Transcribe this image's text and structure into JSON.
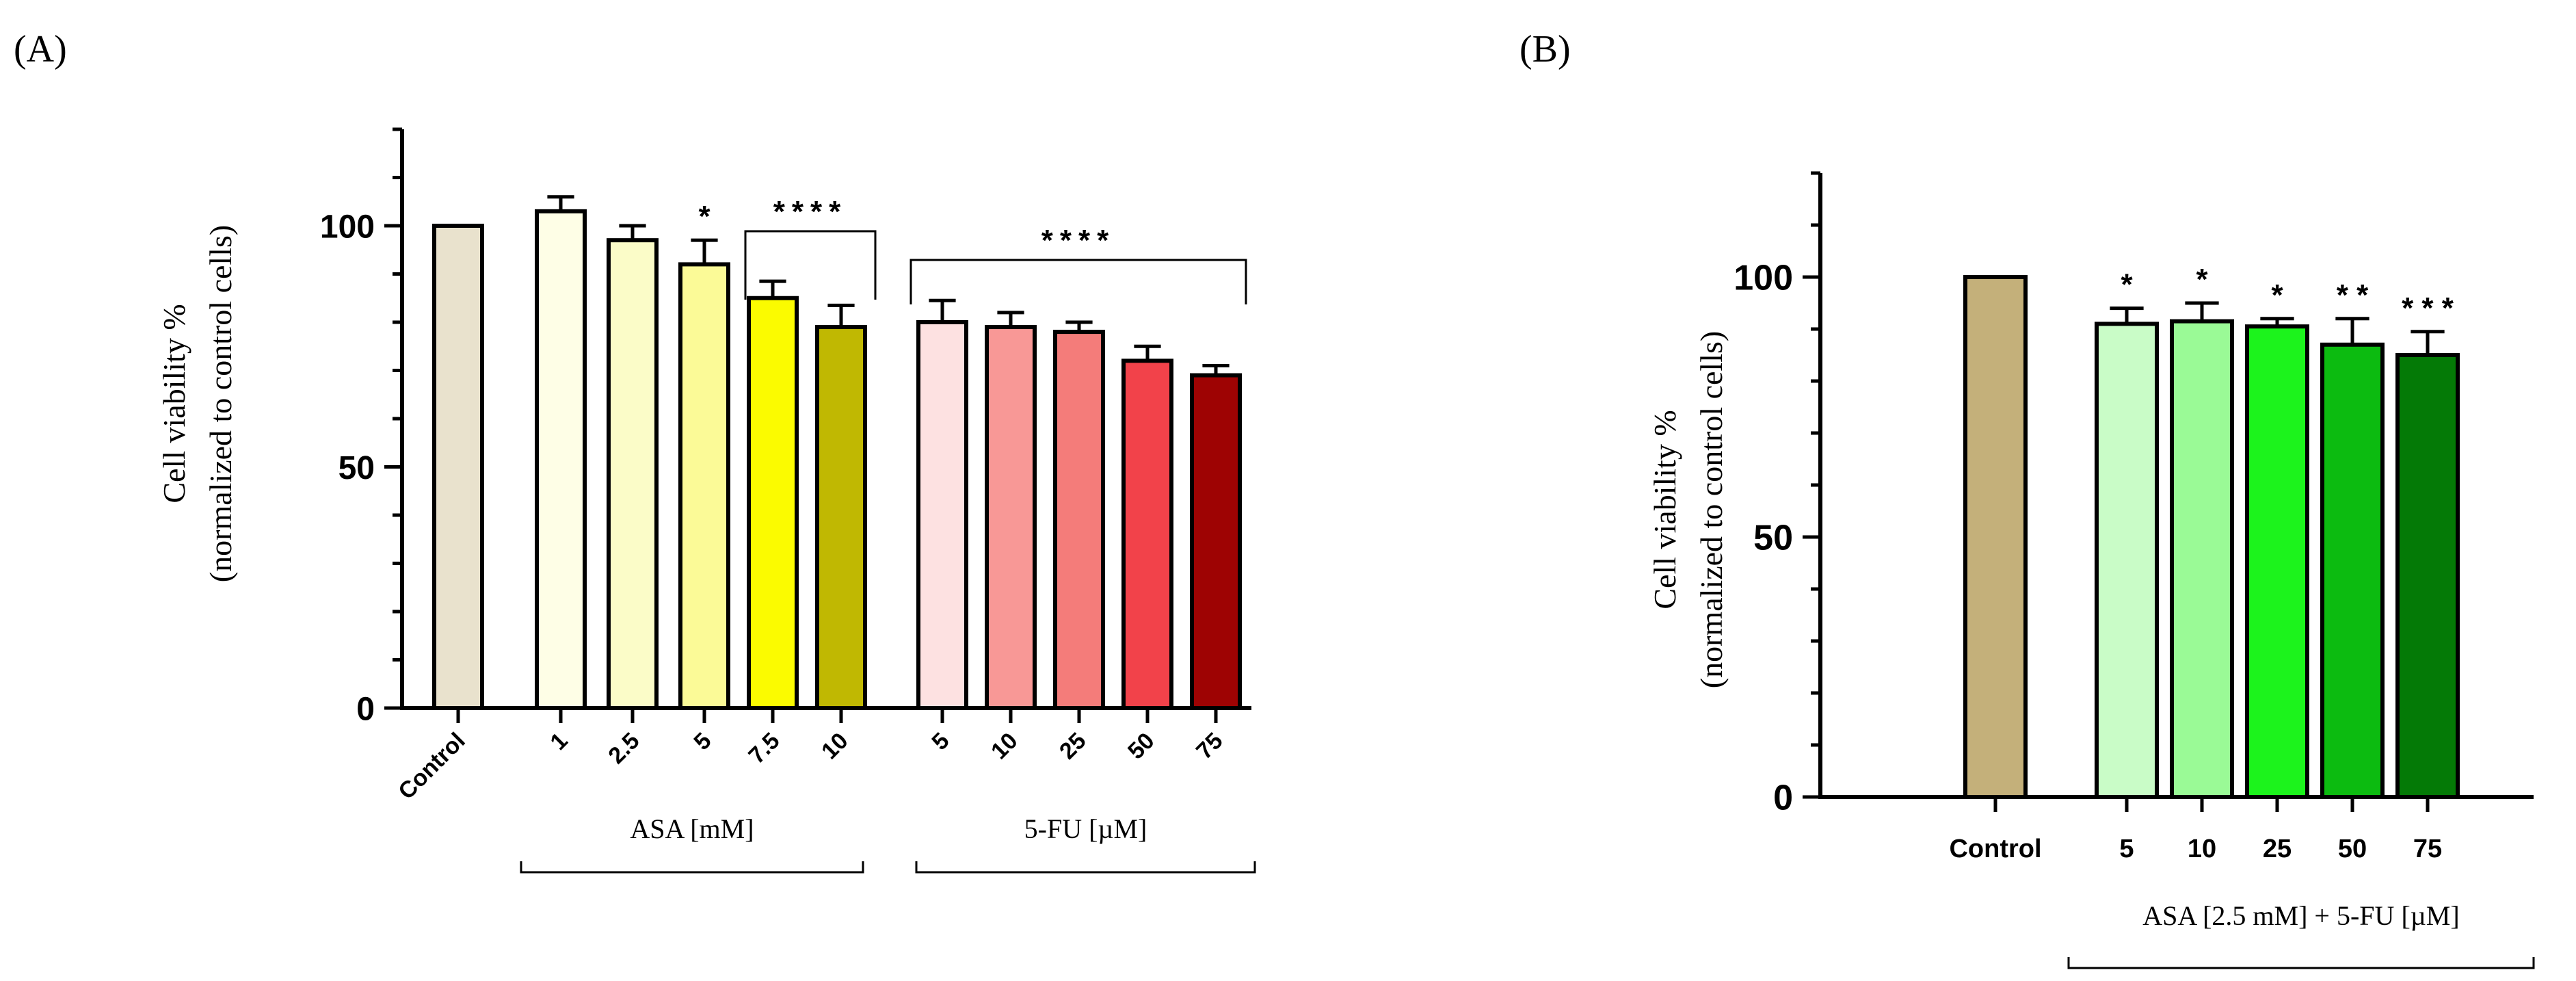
{
  "chart_data": [
    {
      "type": "bar",
      "panel_label": "(A)",
      "ylabel": [
        "Cell viability %",
        "(normalized to control cells)"
      ],
      "ylim": [
        0,
        120
      ],
      "yticks": [
        0,
        50,
        100
      ],
      "bars": [
        {
          "category": "Control",
          "value": 100,
          "error": 0,
          "color": "#e9e2cd"
        },
        {
          "category": "1",
          "value": 103,
          "error": 3,
          "color": "#fefee6"
        },
        {
          "category": "2.5",
          "value": 97,
          "error": 3,
          "color": "#fbfcc8"
        },
        {
          "category": "5",
          "value": 92,
          "error": 5,
          "color": "#fbfa97"
        },
        {
          "category": "7.5",
          "value": 85,
          "error": 3.5,
          "color": "#fbfb00"
        },
        {
          "category": "10",
          "value": 79,
          "error": 4.5,
          "color": "#c0b802"
        },
        {
          "category": "5",
          "value": 80,
          "error": 4.5,
          "color": "#fde1e1"
        },
        {
          "category": "10",
          "value": 79,
          "error": 3,
          "color": "#f89896"
        },
        {
          "category": "25",
          "value": 78,
          "error": 2,
          "color": "#f47c7a"
        },
        {
          "category": "50",
          "value": 72,
          "error": 3,
          "color": "#f2424a"
        },
        {
          "category": "75",
          "value": 69,
          "error": 2,
          "color": "#9e0303"
        }
      ],
      "group_labels": [
        "ASA [mM]",
        "5-FU [µM]"
      ],
      "annotations": [
        {
          "text": "*",
          "bar_index": 3
        },
        {
          "text": "****",
          "bracket": [
            4,
            5
          ]
        },
        {
          "text": "****",
          "bracket": [
            6,
            10
          ]
        }
      ]
    },
    {
      "type": "bar",
      "panel_label": "(B)",
      "ylabel": [
        "Cell viability %",
        "(normalized to control cells)"
      ],
      "ylim": [
        0,
        120
      ],
      "yticks": [
        0,
        50,
        100
      ],
      "bars": [
        {
          "category": "Control",
          "value": 100,
          "error": 0,
          "color": "#c4b07a"
        },
        {
          "category": "5",
          "value": 91,
          "error": 3,
          "color": "#c9fcc7"
        },
        {
          "category": "10",
          "value": 91.5,
          "error": 3.5,
          "color": "#9afa96"
        },
        {
          "category": "25",
          "value": 90.5,
          "error": 1.5,
          "color": "#1cf31c"
        },
        {
          "category": "50",
          "value": 87,
          "error": 5,
          "color": "#0cbb10"
        },
        {
          "category": "75",
          "value": 85,
          "error": 4.5,
          "color": "#047a06"
        }
      ],
      "group_labels": [
        "ASA  [2.5 mM] + 5-FU [µM]"
      ],
      "annotations": [
        {
          "text": "*",
          "bar_index": 1
        },
        {
          "text": "*",
          "bar_index": 2
        },
        {
          "text": "*",
          "bar_index": 3
        },
        {
          "text": "* *",
          "bar_index": 4
        },
        {
          "text": "* * *",
          "bar_index": 5
        }
      ]
    }
  ]
}
